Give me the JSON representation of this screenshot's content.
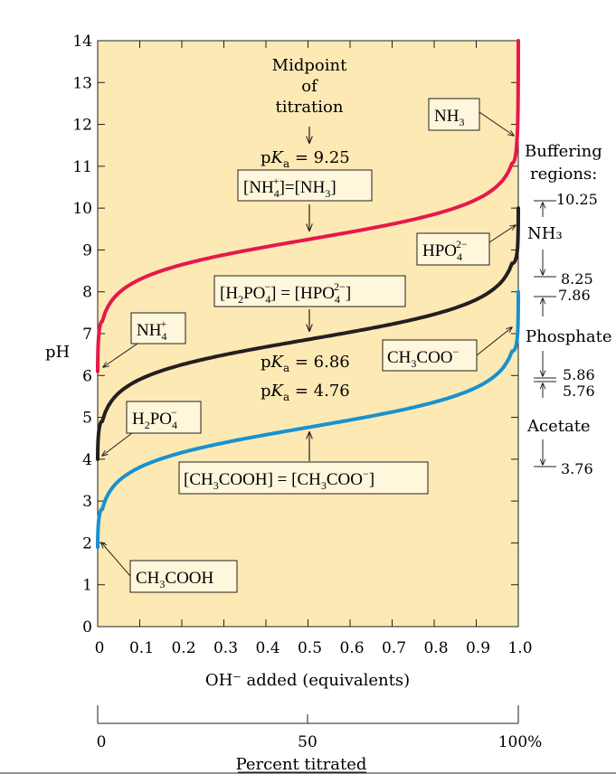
{
  "chart_data": {
    "type": "line",
    "xlabel": "OH⁻ added (equivalents)",
    "ylabel": "pH",
    "secondary_xlabel": "Percent titrated",
    "secondary_ticks": [
      "0",
      "50",
      "100%"
    ],
    "xlim": [
      0,
      1.0
    ],
    "ylim": [
      0,
      14
    ],
    "x_ticks": [
      "0",
      "0.1",
      "0.2",
      "0.3",
      "0.4",
      "0.5",
      "0.6",
      "0.7",
      "0.8",
      "0.9",
      "1.0"
    ],
    "y_ticks": [
      "0",
      "1",
      "2",
      "3",
      "4",
      "5",
      "6",
      "7",
      "8",
      "9",
      "10",
      "11",
      "12",
      "13",
      "14"
    ],
    "colors": {
      "nh3": "#e5194a",
      "phosphate": "#231f20",
      "acetate": "#1991cf",
      "plot_bg": "#fde9b4"
    },
    "series": [
      {
        "pKa": 9.25,
        "x": [
          0,
          0.01,
          0.05,
          0.1,
          0.2,
          0.3,
          0.4,
          0.5,
          0.6,
          0.7,
          0.8,
          0.9,
          0.95,
          0.99,
          1.0
        ],
        "values": [
          6.1,
          7.25,
          7.97,
          8.3,
          8.65,
          8.88,
          9.07,
          9.25,
          9.43,
          9.62,
          9.85,
          10.2,
          10.53,
          11.25,
          14.0
        ]
      },
      {
        "pKa": 6.86,
        "x": [
          0,
          0.01,
          0.05,
          0.1,
          0.2,
          0.3,
          0.4,
          0.5,
          0.6,
          0.7,
          0.8,
          0.9,
          0.95,
          0.99,
          1.0
        ],
        "values": [
          4.0,
          4.86,
          5.58,
          5.91,
          6.26,
          6.49,
          6.68,
          6.86,
          7.04,
          7.23,
          7.46,
          7.81,
          8.14,
          8.86,
          10.0
        ]
      },
      {
        "pKa": 4.76,
        "x": [
          0,
          0.01,
          0.05,
          0.1,
          0.2,
          0.3,
          0.4,
          0.5,
          0.6,
          0.7,
          0.8,
          0.9,
          0.95,
          0.99,
          1.0
        ],
        "values": [
          1.9,
          2.76,
          3.48,
          3.81,
          4.16,
          4.39,
          4.58,
          4.76,
          4.94,
          5.13,
          5.36,
          5.71,
          6.04,
          6.76,
          8.0
        ]
      }
    ],
    "annotations": {
      "midpoint_lines": [
        "Midpoint",
        "of",
        "titration"
      ],
      "pka_nh3": "9.25",
      "pka_phos": "6.86",
      "pka_acet": "4.76",
      "buffering_lines": [
        "Buffering",
        "regions:"
      ],
      "buffer_values": [
        "10.25",
        "8.25",
        "7.86",
        "5.86",
        "5.76",
        "3.76"
      ],
      "buffer_names": [
        "NH₃",
        "Phosphate",
        "Acetate"
      ]
    }
  }
}
